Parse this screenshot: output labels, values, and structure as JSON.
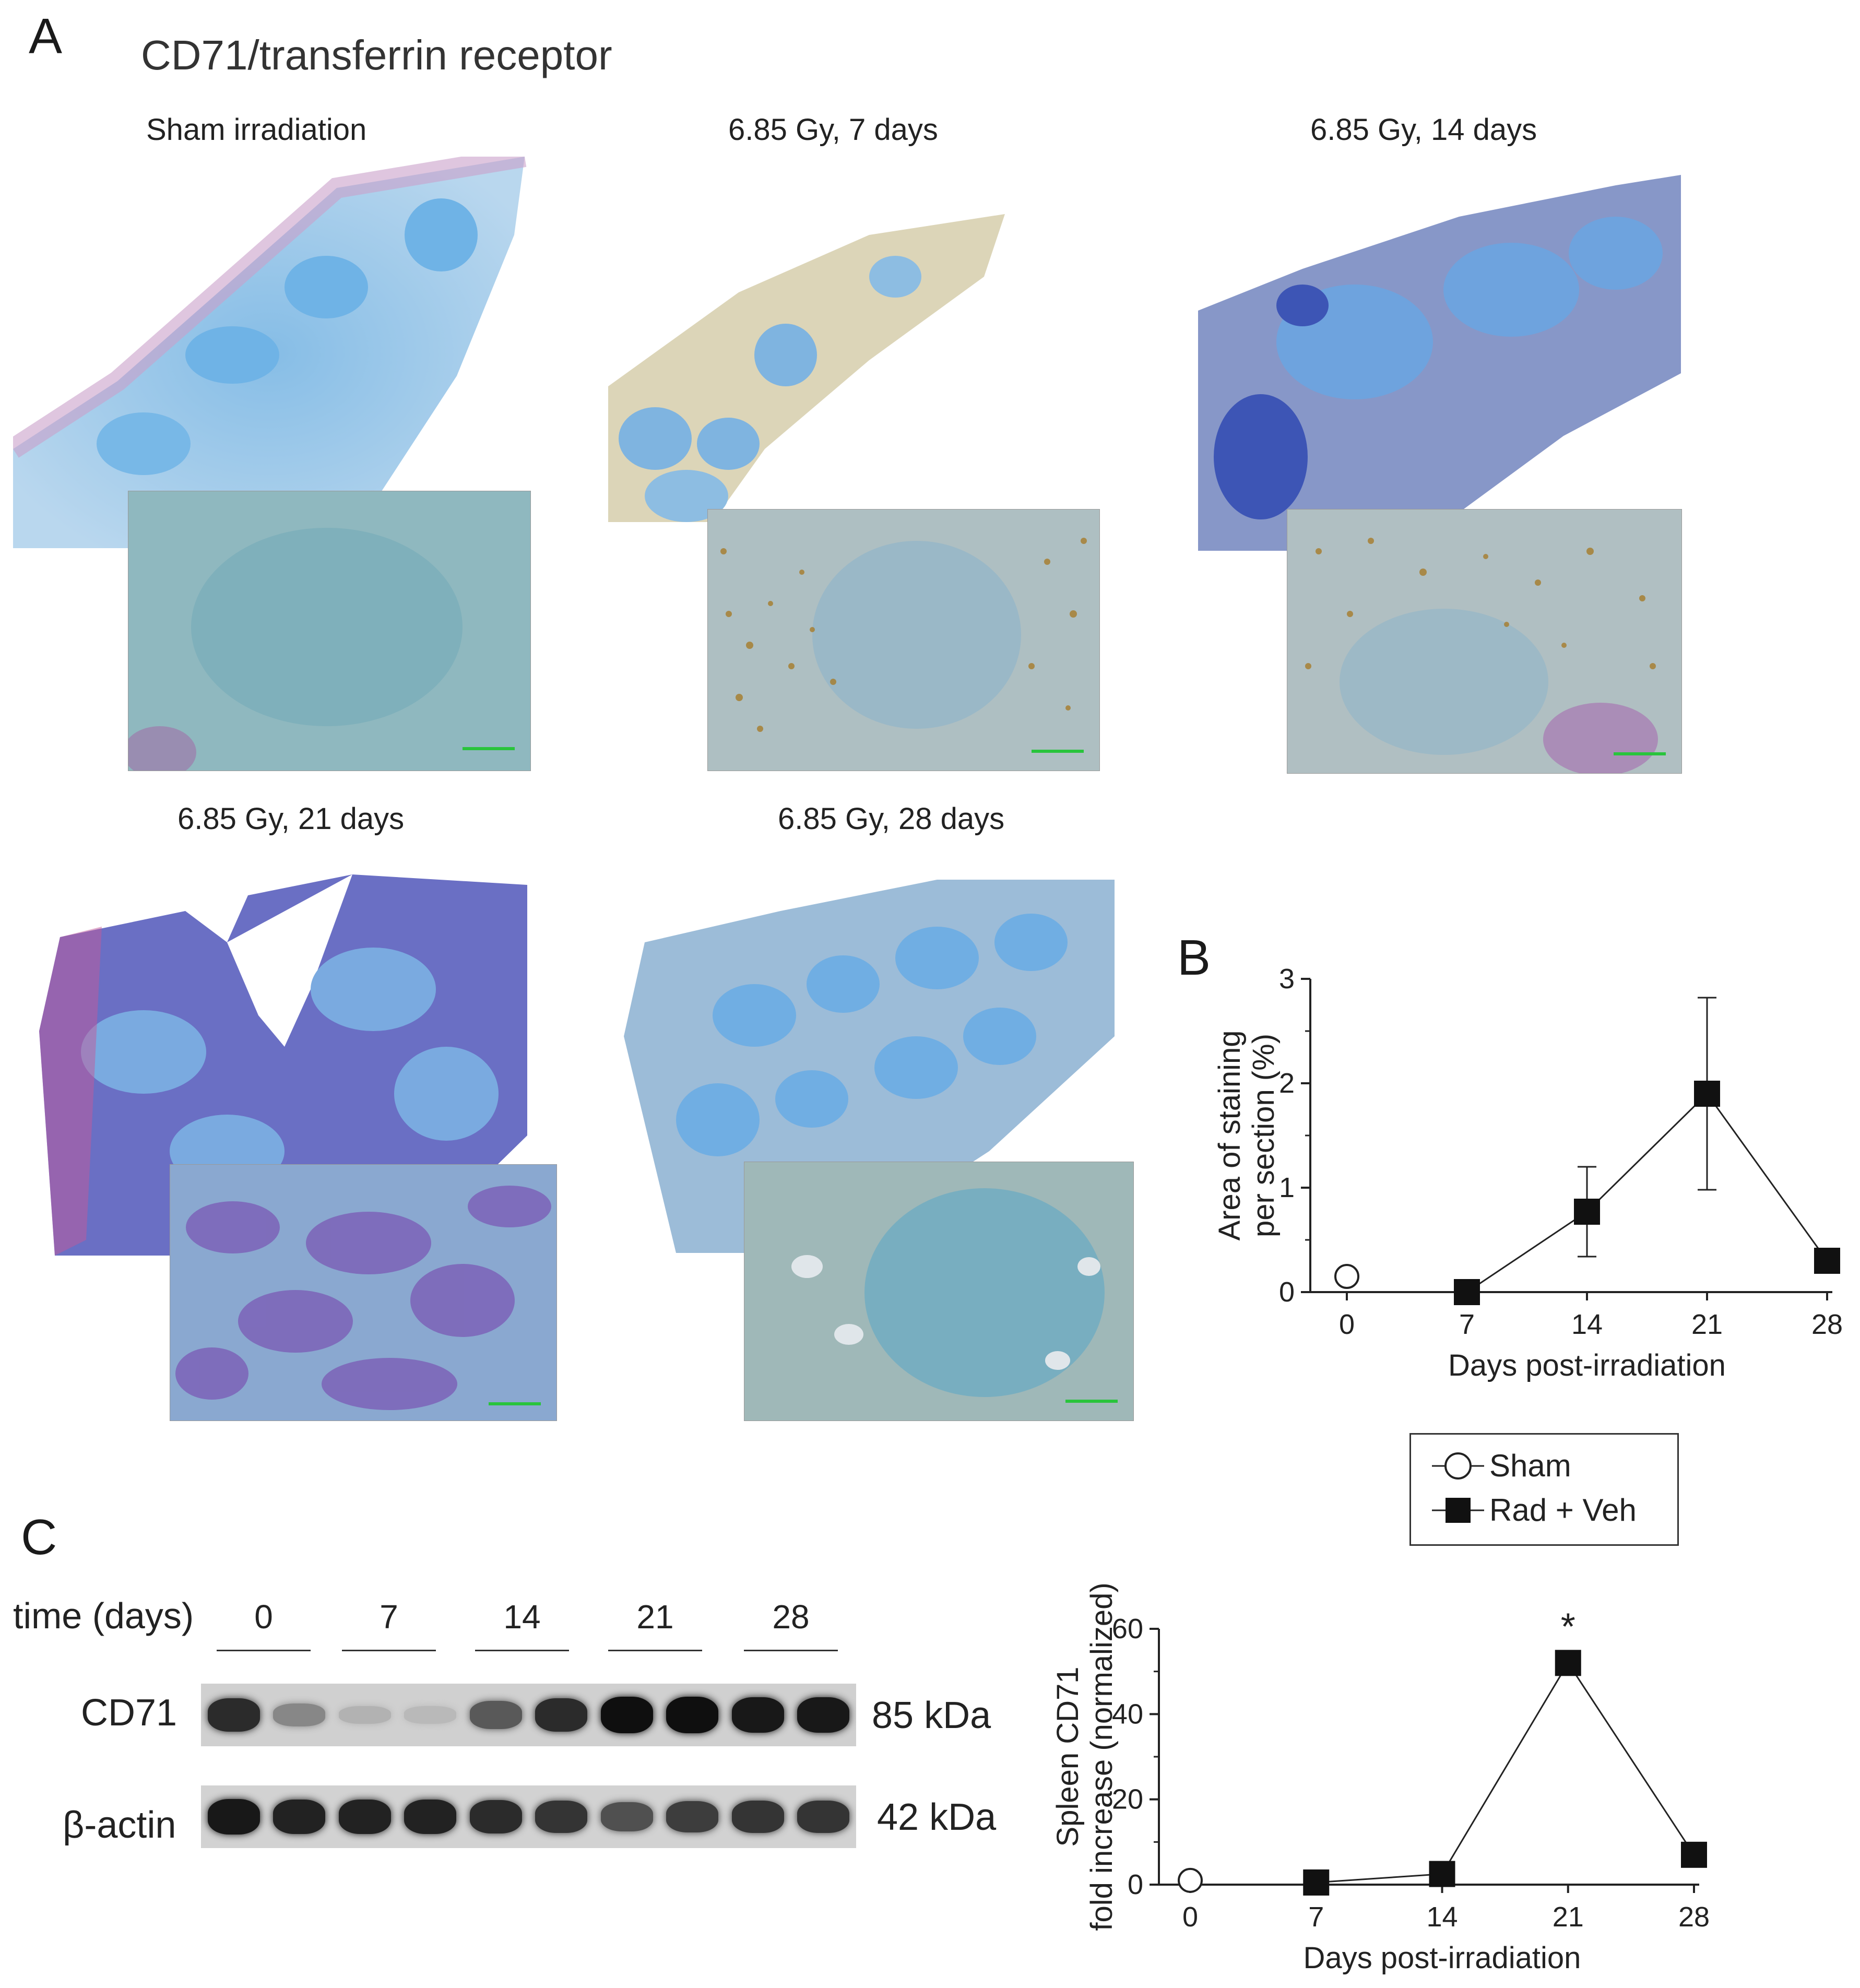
{
  "panelA": {
    "letter": "A",
    "title": "CD71/transferrin receptor",
    "images": [
      {
        "label": "Sham irradiation",
        "scale_color": "#29c43c"
      },
      {
        "label": "6.85 Gy, 7 days",
        "scale_color": "#29c43c"
      },
      {
        "label": "6.85 Gy, 14 days",
        "scale_color": "#29c43c"
      },
      {
        "label": "6.85 Gy, 21 days",
        "scale_color": "#29c43c"
      },
      {
        "label": "6.85 Gy, 28 days",
        "scale_color": "#29c43c"
      }
    ]
  },
  "panelB": {
    "letter": "B",
    "chart_data": {
      "type": "line",
      "xlabel": "Days post-irradiation",
      "ylabel_line1": "Area of staining",
      "ylabel_line2": "per section  (%)",
      "x_ticks": [
        0,
        7,
        14,
        21,
        28
      ],
      "y_ticks": [
        0,
        1,
        2,
        3
      ],
      "xlim": [
        0,
        28
      ],
      "ylim": [
        0,
        3
      ],
      "series": [
        {
          "name": "Sham",
          "marker": "open-circle",
          "points": [
            {
              "x": 0,
              "y": 0.15
            }
          ]
        },
        {
          "name": "Rad + Veh",
          "marker": "filled-square",
          "points": [
            {
              "x": 7,
              "y": 0.0,
              "err": 0
            },
            {
              "x": 14,
              "y": 0.77,
              "err": 0.43
            },
            {
              "x": 21,
              "y": 1.9,
              "err": 0.92
            },
            {
              "x": 28,
              "y": 0.3,
              "err": 0
            }
          ]
        }
      ]
    }
  },
  "legend": {
    "items": [
      {
        "label": "Sham",
        "marker": "open-circle"
      },
      {
        "label": "Rad + Veh",
        "marker": "filled-square"
      }
    ]
  },
  "panelC": {
    "letter": "C",
    "blot": {
      "time_label": "time (days)",
      "lanes": [
        "0",
        "7",
        "14",
        "21",
        "28"
      ],
      "rows": [
        {
          "protein": "CD71",
          "size": "85 kDa",
          "intensities": [
            0.85,
            0.35,
            0.12,
            0.08,
            0.6,
            0.85,
            1.0,
            1.0,
            0.95,
            0.95
          ]
        },
        {
          "protein": "β-actin",
          "size": "42 kDa",
          "intensities": [
            0.95,
            0.9,
            0.9,
            0.9,
            0.85,
            0.8,
            0.65,
            0.75,
            0.8,
            0.8
          ]
        }
      ]
    },
    "chart_data": {
      "type": "line",
      "xlabel": "Days post-irradiation",
      "ylabel_line1": "Spleen CD71",
      "ylabel_line2": "fold increase (normalized)",
      "x_ticks": [
        0,
        7,
        14,
        21,
        28
      ],
      "y_ticks": [
        0,
        20,
        40,
        60
      ],
      "xlim": [
        0,
        28
      ],
      "ylim": [
        0,
        60
      ],
      "annotation": "*",
      "annotation_x": 21,
      "series": [
        {
          "name": "Sham",
          "marker": "open-circle",
          "points": [
            {
              "x": 0,
              "y": 1
            }
          ]
        },
        {
          "name": "Rad + Veh",
          "marker": "filled-square",
          "points": [
            {
              "x": 7,
              "y": 0.5
            },
            {
              "x": 14,
              "y": 2.5
            },
            {
              "x": 21,
              "y": 52
            },
            {
              "x": 28,
              "y": 7
            }
          ]
        }
      ]
    }
  }
}
